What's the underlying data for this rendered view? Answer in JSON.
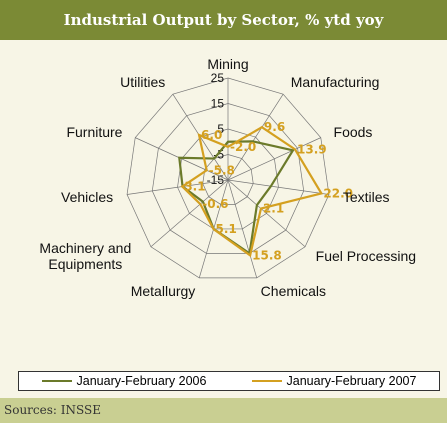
{
  "chart_data": {
    "type": "radar",
    "title": "Industrial Output by Sector, % ytd yoy",
    "categories": [
      "Mining",
      "Manufacturing",
      "Foods",
      "Textiles",
      "Fuel Processing",
      "Chemicals",
      "Metallurgy",
      "Machinery and Equipments",
      "Vehicles",
      "Furniture",
      "Utilities"
    ],
    "series": [
      {
        "name": "January-February 2006",
        "color": "#6b7a2a",
        "values": [
          0,
          3,
          13,
          2,
          0,
          15,
          5,
          -2,
          3,
          6,
          -5
        ]
      },
      {
        "name": "January-February 2007",
        "color": "#d4a020",
        "values": [
          -2,
          9.6,
          13.9,
          22,
          2.1,
          15.8,
          5.1,
          -0.6,
          3.1,
          -5.8,
          6
        ],
        "value_labels": [
          "-2.0",
          "9.6",
          "13.9",
          "22.0",
          "2.1",
          "15.8",
          "5.1",
          "-0.6",
          "3.1",
          "-5.8",
          "6.0"
        ]
      }
    ],
    "ylim": [
      -15,
      25
    ],
    "yticks": [
      -15,
      -5,
      5,
      15,
      25
    ],
    "grid": true,
    "source": "Sources: INSSE"
  }
}
